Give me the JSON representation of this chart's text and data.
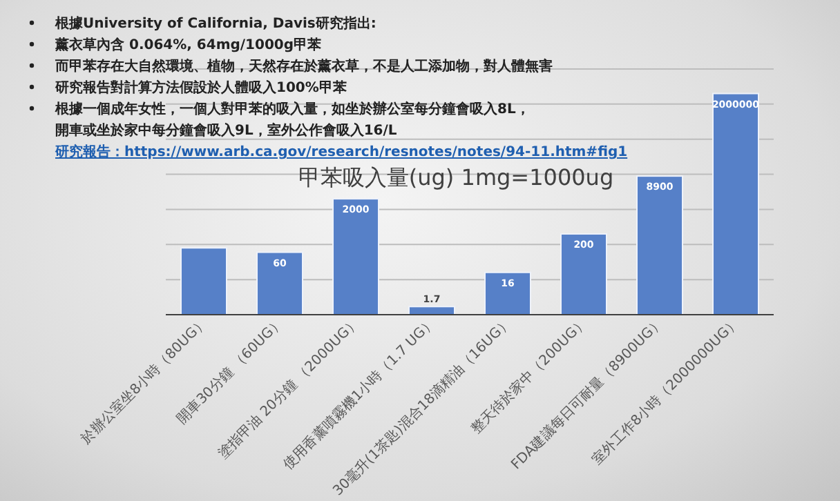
{
  "chart_data": {
    "type": "bar",
    "title": "甲苯吸入量(ug) 1mg=1000ug",
    "annotations": [
      "根據University of California, Davis研究指出:",
      "薰衣草內含 0.064%, 64mg/1000g甲苯",
      "而甲苯存在大自然環境、植物，天然存在於薰衣草，不是人工添加物，對人體無害",
      "研究報告對計算方法假設於人體吸入100%甲苯",
      "根據一個成年女性，一個人對甲苯的吸入量，如坐於辦公室每分鐘會吸入8L，",
      "開車或坐於家中每分鐘會吸入9L，室外公作會吸入16/L",
      "研究報告：https://www.arb.ca.gov/research/resnotes/notes/94-11.htm#fig1"
    ],
    "categories": [
      "於辦公室坐8小時（80UG）",
      "開車30分鐘 （60UG）",
      "塗指甲油 20分鐘 （2000UG）",
      "使用香薰噴霧機1小時（1.7 UG）",
      "30毫升(1茶匙)混合18滴精油（16UG）",
      "整天待於家中（200UG）",
      "FDA建議每日可耐量（8900UG）",
      "室外工作8小時（2000000UG）"
    ],
    "values": [
      80,
      60,
      2000,
      1.7,
      16,
      200,
      8900,
      2000000
    ],
    "value_labels": [
      null,
      "60",
      "2000",
      "1.7",
      "16",
      "200",
      "8900",
      "2000000"
    ],
    "color": "#5680c8",
    "log": true,
    "ylim": [
      1,
      10000000
    ],
    "yticks": [
      {
        "value": 1,
        "label": null
      },
      {
        "value": 10,
        "label": null
      },
      {
        "value": 100,
        "label": null
      },
      {
        "value": 1000,
        "label": null
      },
      {
        "value": 10000,
        "label": null
      },
      {
        "value": 100000,
        "label": null
      },
      {
        "value": 1000000,
        "label": null
      },
      {
        "value": 10000000,
        "label": null
      }
    ],
    "grid": "y",
    "tick_labels": "x"
  }
}
